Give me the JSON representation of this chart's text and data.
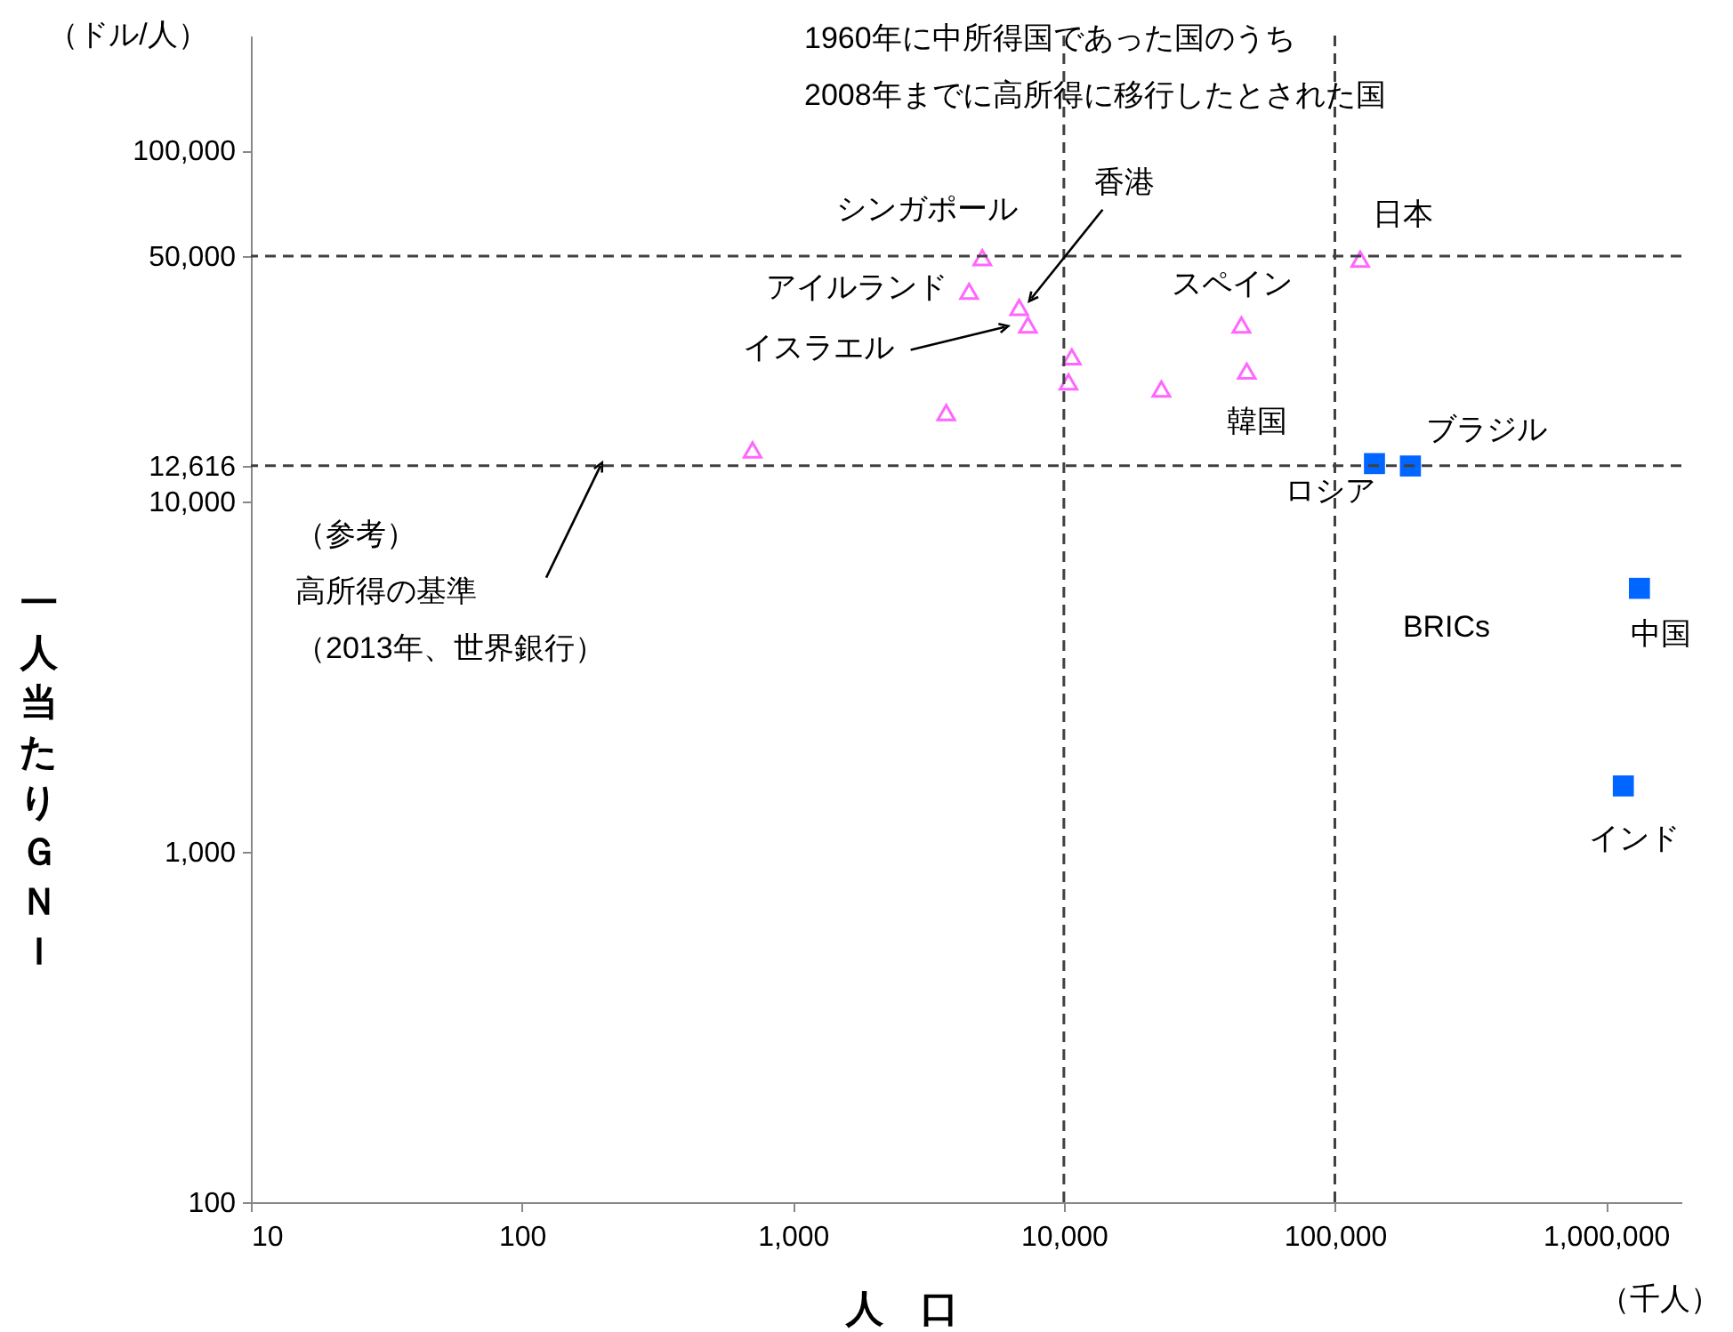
{
  "chart_data": {
    "type": "scatter",
    "xlabel": "人　口",
    "ylabel": "一人当たりＧＮＩ",
    "log": "xy",
    "xlim": [
      10,
      1900000
    ],
    "ylim": [
      100,
      213000
    ],
    "xticks": [
      10,
      100,
      {
        "value": 1000,
        "label": "1,000"
      },
      {
        "value": 10000,
        "label": "10,000"
      },
      {
        "value": 100000,
        "label": "100,000"
      },
      {
        "value": 1000000,
        "label": "1,000,000"
      }
    ],
    "yticks": [
      100,
      {
        "value": 1000,
        "label": "1,000"
      },
      {
        "value": 10000,
        "label": "10,000"
      },
      {
        "value": 12616,
        "label": "12,616"
      },
      {
        "value": 50000,
        "label": "50,000"
      },
      {
        "value": 100000,
        "label": "100,000"
      }
    ],
    "grid": false,
    "series": [
      {
        "color": "#ff66ff",
        "marker": "triangle",
        "x": [
          710,
          3680,
          4470,
          5000,
          6840,
          7370,
          10700,
          10400,
          22900,
          45200,
          47300,
          124000
        ],
        "values": [
          14000,
          17900,
          39700,
          49500,
          35700,
          31800,
          25800,
          21900,
          20900,
          31800,
          23500,
          49000
        ]
      },
      {
        "color": "#0066ff",
        "marker": "square",
        "x": [
          140000,
          190000,
          1330000,
          1160000
        ],
        "values": [
          12800,
          12600,
          5640,
          1540
        ]
      }
    ],
    "ref_lines": [
      {
        "axis": "y",
        "value": 12616,
        "color": "#404040",
        "line_style": "dashed"
      },
      {
        "axis": "y",
        "value": 50000,
        "color": "#404040",
        "line_style": "dashed"
      },
      {
        "axis": "x",
        "value": 10000,
        "color": "#404040",
        "line_style": "dashed"
      },
      {
        "axis": "x",
        "value": 100000,
        "color": "#404040",
        "line_style": "dashed"
      }
    ],
    "annotations": [
      "1960年に中所得国であった国のうち",
      "2008年までに高所得に移行したとされた国",
      {
        "text": "シンガポール",
        "x": 5000,
        "y": 49500
      },
      {
        "text": "アイルランド",
        "x": 4470,
        "y": 39700
      },
      {
        "text": "香港",
        "x": 6840,
        "y": 35700
      },
      "イスラエル",
      {
        "text": "スペイン",
        "x": 45200,
        "y": 31800
      },
      {
        "text": "韓国",
        "x": 47300,
        "y": 23500
      },
      {
        "text": "日本",
        "x": 124000,
        "y": 49000
      },
      {
        "text": "ロシア",
        "x": 140000,
        "y": 12800
      },
      {
        "text": "ブラジル",
        "x": 190000,
        "y": 12600
      },
      {
        "text": "中国",
        "x": 1330000,
        "y": 5640
      },
      {
        "text": "インド",
        "x": 1160000,
        "y": 1540
      },
      "BRICs",
      "（参考）",
      "高所得の基準",
      "（2013年、世界銀行）",
      "（ドル/人）",
      "（千人）"
    ]
  }
}
